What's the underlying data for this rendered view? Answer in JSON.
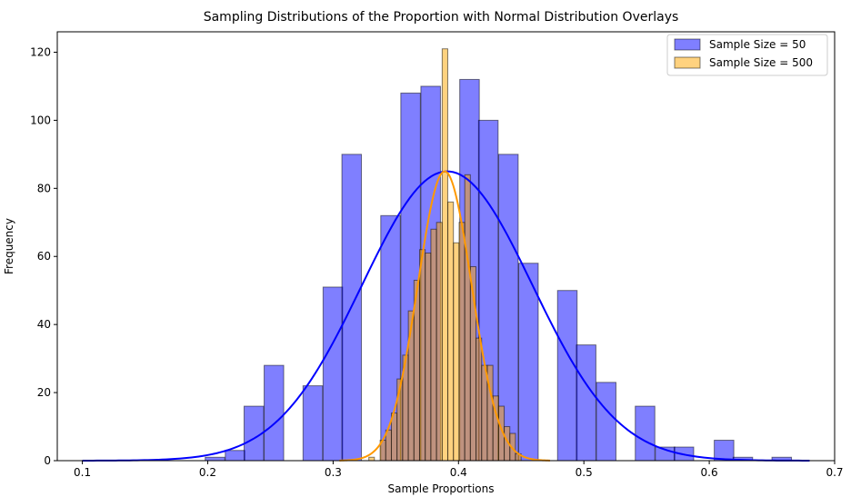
{
  "chart_data": {
    "type": "bar",
    "title": "Sampling Distributions of the Proportion with Normal Distribution Overlays",
    "xlabel": "Sample Proportions",
    "ylabel": "Frequency",
    "xlim": [
      0.08,
      0.7
    ],
    "ylim": [
      0,
      126
    ],
    "xticks": [
      0.1,
      0.2,
      0.3,
      0.4,
      0.5,
      0.6,
      0.7
    ],
    "xtick_labels": [
      "0.1",
      "0.2",
      "0.3",
      "0.4",
      "0.5",
      "0.6",
      "0.7"
    ],
    "yticks": [
      0,
      20,
      40,
      60,
      80,
      100,
      120
    ],
    "ytick_labels": [
      "0",
      "20",
      "40",
      "60",
      "80",
      "100",
      "120"
    ],
    "grid": false,
    "legend_position": "top-right",
    "legend": [
      {
        "label": "Sample Size = 50",
        "color": "#0000ff",
        "alpha": 0.5
      },
      {
        "label": "Sample Size = 500",
        "color": "#ffa500",
        "alpha": 0.5
      }
    ],
    "series": [
      {
        "name": "Sample Size = 50",
        "kind": "histogram",
        "color": "#0000ff",
        "alpha": 0.5,
        "bin_width": 0.0156,
        "bins": [
          {
            "x0": 0.198,
            "count": 1
          },
          {
            "x0": 0.214,
            "count": 3
          },
          {
            "x0": 0.229,
            "count": 16
          },
          {
            "x0": 0.245,
            "count": 28
          },
          {
            "x0": 0.276,
            "count": 22
          },
          {
            "x0": 0.292,
            "count": 51
          },
          {
            "x0": 0.307,
            "count": 90
          },
          {
            "x0": 0.338,
            "count": 72
          },
          {
            "x0": 0.354,
            "count": 108
          },
          {
            "x0": 0.37,
            "count": 110
          },
          {
            "x0": 0.401,
            "count": 112
          },
          {
            "x0": 0.416,
            "count": 100
          },
          {
            "x0": 0.432,
            "count": 90
          },
          {
            "x0": 0.448,
            "count": 58
          },
          {
            "x0": 0.479,
            "count": 50
          },
          {
            "x0": 0.494,
            "count": 34
          },
          {
            "x0": 0.51,
            "count": 23
          },
          {
            "x0": 0.541,
            "count": 16
          },
          {
            "x0": 0.557,
            "count": 4
          },
          {
            "x0": 0.572,
            "count": 4
          },
          {
            "x0": 0.604,
            "count": 6
          },
          {
            "x0": 0.619,
            "count": 1
          },
          {
            "x0": 0.65,
            "count": 1
          }
        ]
      },
      {
        "name": "Sample Size = 500",
        "kind": "histogram",
        "color": "#ffa500",
        "alpha": 0.5,
        "bin_width": 0.00444,
        "bins": [
          {
            "x0": 0.3285,
            "count": 1
          },
          {
            "x0": 0.3375,
            "count": 6
          },
          {
            "x0": 0.342,
            "count": 9
          },
          {
            "x0": 0.3465,
            "count": 14
          },
          {
            "x0": 0.351,
            "count": 24
          },
          {
            "x0": 0.3555,
            "count": 31
          },
          {
            "x0": 0.36,
            "count": 44
          },
          {
            "x0": 0.3645,
            "count": 53
          },
          {
            "x0": 0.369,
            "count": 62
          },
          {
            "x0": 0.3735,
            "count": 61
          },
          {
            "x0": 0.378,
            "count": 68
          },
          {
            "x0": 0.3825,
            "count": 70
          },
          {
            "x0": 0.387,
            "count": 121
          },
          {
            "x0": 0.3915,
            "count": 76
          },
          {
            "x0": 0.396,
            "count": 64
          },
          {
            "x0": 0.4005,
            "count": 70
          },
          {
            "x0": 0.405,
            "count": 84
          },
          {
            "x0": 0.4095,
            "count": 57
          },
          {
            "x0": 0.414,
            "count": 36
          },
          {
            "x0": 0.4185,
            "count": 28
          },
          {
            "x0": 0.423,
            "count": 28
          },
          {
            "x0": 0.4275,
            "count": 19
          },
          {
            "x0": 0.432,
            "count": 16
          },
          {
            "x0": 0.4365,
            "count": 10
          },
          {
            "x0": 0.441,
            "count": 8
          },
          {
            "x0": 0.4455,
            "count": 2
          }
        ]
      }
    ],
    "normal_overlays": [
      {
        "name": "Sample Size = 50",
        "color": "#0000ff",
        "mean": 0.391,
        "sd": 0.068,
        "peak": 85,
        "x_range": [
          0.1,
          0.68
        ]
      },
      {
        "name": "Sample Size = 500",
        "color": "#ff9900",
        "mean": 0.389,
        "sd": 0.0215,
        "peak": 85,
        "x_range": [
          0.305,
          0.473
        ]
      }
    ]
  }
}
